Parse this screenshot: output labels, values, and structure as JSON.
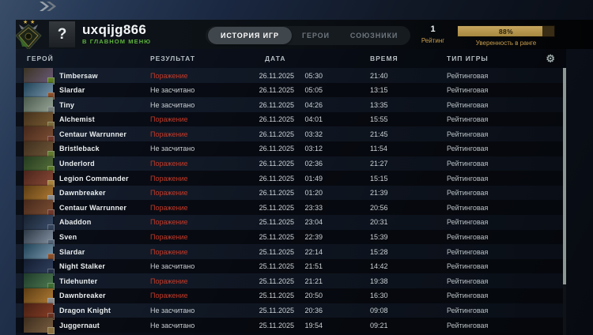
{
  "header": {
    "avatar": {
      "glyph": "?"
    },
    "player": {
      "name": "uxqijg866",
      "status": "В ГЛАВНОМ МЕНЮ"
    },
    "tabs": [
      {
        "label": "ИСТОРИЯ ИГР",
        "active": true
      },
      {
        "label": "ГЕРОИ",
        "active": false
      },
      {
        "label": "СОЮЗНИКИ",
        "active": false
      }
    ],
    "rating": {
      "value": "1",
      "label": "Рейтинг"
    },
    "confidence": {
      "percent": 88,
      "percent_label": "88%",
      "label": "Уверенность в ранге"
    }
  },
  "colors": {
    "accent_gold": "#c99e4d",
    "loss_red": "#c43a28",
    "status_green": "#5db33a"
  },
  "table": {
    "columns": [
      "ГЕРОЙ",
      "РЕЗУЛЬТАТ",
      "ДАТА",
      "ВРЕМЯ",
      "ТИП ИГРЫ"
    ],
    "rows": [
      {
        "hero": "Timbersaw",
        "result": "Поражение",
        "result_type": "loss",
        "date": "26.11.2025",
        "start_time": "05:30",
        "duration": "21:40",
        "mode": "Рейтинговая",
        "icon_colors": [
          "#3a3322",
          "#6b5a7a",
          "#5f7d22"
        ]
      },
      {
        "hero": "Slardar",
        "result": "Не засчитано",
        "result_type": "ns",
        "date": "26.11.2025",
        "start_time": "05:05",
        "duration": "13:15",
        "mode": "Рейтинговая",
        "icon_colors": [
          "#1f4256",
          "#7c98ae",
          "#8a4f2a"
        ]
      },
      {
        "hero": "Tiny",
        "result": "Не засчитано",
        "result_type": "ns",
        "date": "26.11.2025",
        "start_time": "04:26",
        "duration": "13:35",
        "mode": "Рейтинговая",
        "icon_colors": [
          "#4a5a4c",
          "#98a698",
          "#77807b"
        ]
      },
      {
        "hero": "Alchemist",
        "result": "Поражение",
        "result_type": "loss",
        "date": "26.11.2025",
        "start_time": "04:01",
        "duration": "15:55",
        "mode": "Рейтинговая",
        "icon_colors": [
          "#43301c",
          "#7a5c32",
          "#7d6c3a"
        ]
      },
      {
        "hero": "Centaur Warrunner",
        "result": "Поражение",
        "result_type": "loss",
        "date": "26.11.2025",
        "start_time": "03:32",
        "duration": "21:45",
        "mode": "Рейтинговая",
        "icon_colors": [
          "#46281c",
          "#7c4f33",
          "#71392a"
        ]
      },
      {
        "hero": "Bristleback",
        "result": "Не засчитано",
        "result_type": "ns",
        "date": "26.11.2025",
        "start_time": "03:12",
        "duration": "11:54",
        "mode": "Рейтинговая",
        "icon_colors": [
          "#3f2e1e",
          "#6f5738",
          "#647a2e"
        ]
      },
      {
        "hero": "Underlord",
        "result": "Поражение",
        "result_type": "loss",
        "date": "26.11.2025",
        "start_time": "02:36",
        "duration": "21:27",
        "mode": "Рейтинговая",
        "icon_colors": [
          "#243a20",
          "#57703a",
          "#5c7a28"
        ]
      },
      {
        "hero": "Legion Commander",
        "result": "Поражение",
        "result_type": "loss",
        "date": "26.11.2025",
        "start_time": "01:49",
        "duration": "15:15",
        "mode": "Рейтинговая",
        "icon_colors": [
          "#4a241c",
          "#8a4a36",
          "#a8823c"
        ]
      },
      {
        "hero": "Dawnbreaker",
        "result": "Поражение",
        "result_type": "loss",
        "date": "26.11.2025",
        "start_time": "01:20",
        "duration": "21:39",
        "mode": "Рейтинговая",
        "icon_colors": [
          "#5c3c14",
          "#b07c34",
          "#8c8c8c"
        ]
      },
      {
        "hero": "Centaur Warrunner",
        "result": "Поражение",
        "result_type": "loss",
        "date": "25.11.2025",
        "start_time": "23:33",
        "duration": "20:56",
        "mode": "Рейтинговая",
        "icon_colors": [
          "#46281c",
          "#7c4f33",
          "#71392a"
        ]
      },
      {
        "hero": "Abaddon",
        "result": "Поражение",
        "result_type": "loss",
        "date": "25.11.2025",
        "start_time": "23:04",
        "duration": "20:31",
        "mode": "Рейтинговая",
        "icon_colors": [
          "#16202e",
          "#3d4f6b",
          "#34435c"
        ]
      },
      {
        "hero": "Sven",
        "result": "Поражение",
        "result_type": "loss",
        "date": "25.11.2025",
        "start_time": "22:39",
        "duration": "15:39",
        "mode": "Рейтинговая",
        "icon_colors": [
          "#2c3744",
          "#8795a5",
          "#556578"
        ]
      },
      {
        "hero": "Slardar",
        "result": "Поражение",
        "result_type": "loss",
        "date": "25.11.2025",
        "start_time": "22:14",
        "duration": "15:28",
        "mode": "Рейтинговая",
        "icon_colors": [
          "#1f4256",
          "#7c98ae",
          "#8a4f2a"
        ]
      },
      {
        "hero": "Night Stalker",
        "result": "Не засчитано",
        "result_type": "ns",
        "date": "25.11.2025",
        "start_time": "21:51",
        "duration": "14:42",
        "mode": "Рейтинговая",
        "icon_colors": [
          "#121c30",
          "#32415e",
          "#27334c"
        ]
      },
      {
        "hero": "Tidehunter",
        "result": "Поражение",
        "result_type": "loss",
        "date": "25.11.2025",
        "start_time": "21:21",
        "duration": "19:38",
        "mode": "Рейтинговая",
        "icon_colors": [
          "#1e3a2a",
          "#4e7a50",
          "#3f6e33"
        ]
      },
      {
        "hero": "Dawnbreaker",
        "result": "Поражение",
        "result_type": "loss",
        "date": "25.11.2025",
        "start_time": "20:50",
        "duration": "16:30",
        "mode": "Рейтинговая",
        "icon_colors": [
          "#5c3c14",
          "#b07c34",
          "#8c8c8c"
        ]
      },
      {
        "hero": "Dragon Knight",
        "result": "Не засчитано",
        "result_type": "ns",
        "date": "25.11.2025",
        "start_time": "20:36",
        "duration": "09:08",
        "mode": "Рейтинговая",
        "icon_colors": [
          "#451f14",
          "#8a3f26",
          "#6e3322"
        ]
      },
      {
        "hero": "Juggernaut",
        "result": "Не засчитано",
        "result_type": "ns",
        "date": "25.11.2025",
        "start_time": "19:54",
        "duration": "09:21",
        "mode": "Рейтинговая",
        "icon_colors": [
          "#3c2c1e",
          "#7a5f40",
          "#8c7240"
        ]
      }
    ]
  }
}
